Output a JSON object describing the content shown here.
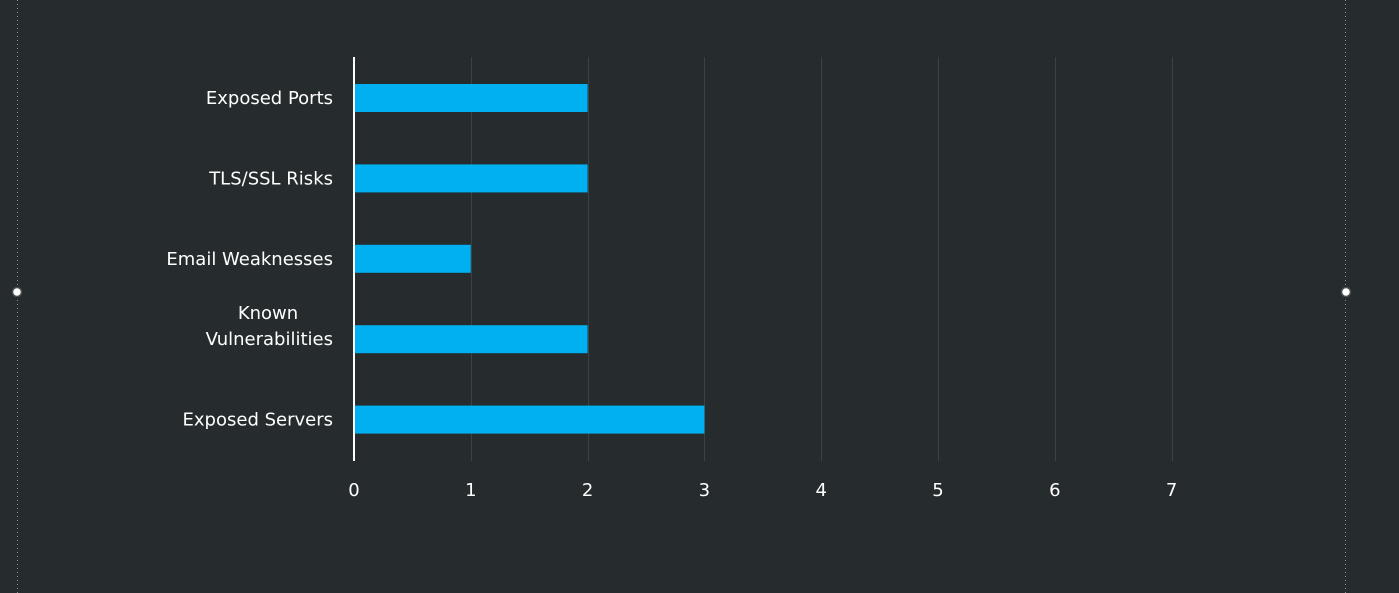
{
  "chart_data": {
    "type": "bar",
    "orientation": "horizontal",
    "categories": [
      "Exposed Ports",
      "TLS/SSL Risks",
      "Email Weaknesses",
      "Known Vulnerabilities",
      "Exposed Servers"
    ],
    "category_lines": [
      [
        "Exposed Ports"
      ],
      [
        "TLS/SSL Risks"
      ],
      [
        "Email Weaknesses"
      ],
      [
        "Known",
        "Vulnerabilities"
      ],
      [
        "Exposed Servers"
      ]
    ],
    "values": [
      2,
      2,
      1,
      2,
      3
    ],
    "xticks": [
      "0",
      "1",
      "2",
      "3",
      "4",
      "5",
      "6",
      "7"
    ],
    "xlim": [
      0,
      7
    ],
    "grid": true,
    "title": "",
    "xlabel": "",
    "ylabel": ""
  },
  "colors": {
    "background": "#262b2d",
    "bar": "#00b0f0",
    "grid": "#3c4244",
    "axis": "#ffffff",
    "text": "#ffffff"
  }
}
